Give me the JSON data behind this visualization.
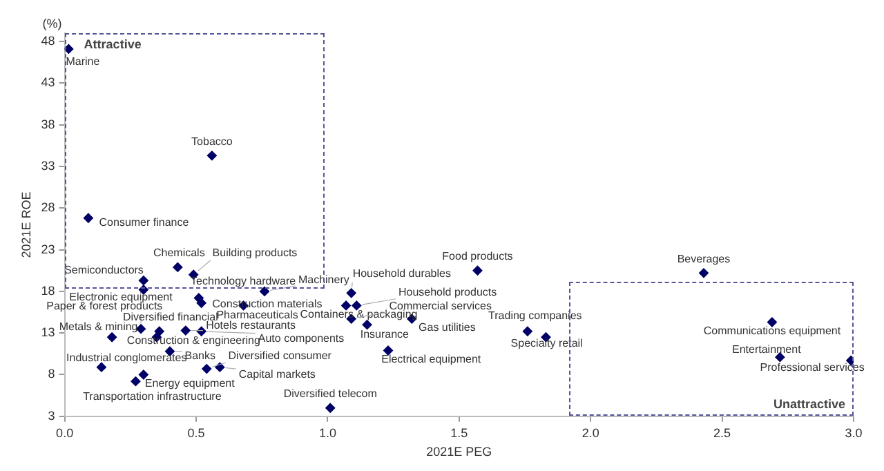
{
  "chart_data": {
    "type": "scatter",
    "xlabel": "2021E PEG",
    "ylabel": "2021E ROE",
    "xlim": [
      0,
      3
    ],
    "ylim": [
      3,
      49
    ],
    "xticks": [
      {
        "value": 0,
        "label": "0.0"
      },
      {
        "value": 0.5,
        "label": "0.5"
      },
      {
        "value": 1,
        "label": "1.0"
      },
      {
        "value": 1.5,
        "label": "1.5"
      },
      {
        "value": 2,
        "label": "2.0"
      },
      {
        "value": 2.5,
        "label": "2.5"
      },
      {
        "value": 3,
        "label": "3.0"
      }
    ],
    "yticks": [
      3,
      8,
      13,
      18,
      23,
      28,
      33,
      38,
      43,
      48
    ],
    "grid": false,
    "legend": false,
    "marker": "diamond",
    "series": [
      {
        "color": "#000066",
        "x": [
          0.015,
          0.56,
          0.09,
          0.43,
          0.49,
          0.3,
          0.3,
          0.51,
          0.52,
          0.68,
          0.76,
          1.09,
          1.07,
          1.11,
          1.09,
          1.15,
          1.32,
          1.23,
          0.29,
          0.36,
          0.18,
          0.35,
          0.46,
          0.52,
          0.4,
          0.14,
          0.54,
          0.59,
          0.3,
          0.27,
          1.01,
          1.57,
          2.43,
          1.76,
          1.83,
          2.69,
          2.72,
          2.99
        ],
        "values": [
          47.1,
          34.3,
          26.8,
          20.9,
          20.0,
          19.3,
          18.2,
          17.2,
          16.6,
          16.3,
          18.0,
          17.8,
          16.3,
          16.3,
          14.7,
          14.0,
          14.7,
          10.9,
          13.5,
          13.2,
          12.5,
          12.5,
          13.3,
          13.2,
          10.8,
          8.9,
          8.7,
          8.9,
          8.0,
          7.2,
          4.0,
          20.5,
          20.2,
          13.2,
          12.5,
          14.3,
          10.1,
          9.7
        ]
      }
    ],
    "annotations": [
      "(%)",
      "Attractive",
      "Unattractive",
      {
        "text": "Marine",
        "x": 0.015,
        "y": 47.1
      },
      {
        "text": "Tobacco",
        "x": 0.56,
        "y": 34.3
      },
      {
        "text": "Consumer finance",
        "x": 0.09,
        "y": 26.8
      },
      {
        "text": "Chemicals",
        "x": 0.43,
        "y": 20.9
      },
      {
        "text": "Building products",
        "x": 0.49,
        "y": 20.0
      },
      {
        "text": "Semiconductors",
        "x": 0.3,
        "y": 19.3
      },
      {
        "text": "Electronic equipment",
        "x": 0.3,
        "y": 18.2
      },
      {
        "text": "Technology hardware",
        "x": 0.51,
        "y": 17.2
      },
      {
        "text": "Construction materials",
        "x": 0.52,
        "y": 16.6
      },
      {
        "text": "Pharmaceuticals",
        "x": 0.68,
        "y": 16.3
      },
      {
        "text": "Machinery",
        "x": 0.76,
        "y": 18.0
      },
      {
        "text": "Household durables",
        "x": 1.09,
        "y": 17.8
      },
      {
        "text": "Containers & packaging",
        "x": 1.07,
        "y": 16.3
      },
      {
        "text": "Household products",
        "x": 1.11,
        "y": 16.3
      },
      {
        "text": "Commercial services",
        "x": 1.09,
        "y": 14.7
      },
      {
        "text": "Insurance",
        "x": 1.15,
        "y": 14.0
      },
      {
        "text": "Gas utilities",
        "x": 1.32,
        "y": 14.7
      },
      {
        "text": "Electrical equipment",
        "x": 1.23,
        "y": 10.9
      },
      {
        "text": "Paper & forest products",
        "x": 0.29,
        "y": 13.5
      },
      {
        "text": "Diversified financial",
        "x": 0.36,
        "y": 13.2
      },
      {
        "text": "Metals & mining",
        "x": 0.18,
        "y": 12.5
      },
      {
        "text": "Construction & engineering",
        "x": 0.35,
        "y": 12.5
      },
      {
        "text": "Hotels restaurants",
        "x": 0.46,
        "y": 13.3
      },
      {
        "text": "Auto components",
        "x": 0.52,
        "y": 13.2
      },
      {
        "text": "Banks",
        "x": 0.4,
        "y": 10.8
      },
      {
        "text": "Industrial conglomerates",
        "x": 0.14,
        "y": 8.9
      },
      {
        "text": "Diversified consumer",
        "x": 0.54,
        "y": 8.7
      },
      {
        "text": "Capital markets",
        "x": 0.59,
        "y": 8.9
      },
      {
        "text": "Energy equipment",
        "x": 0.3,
        "y": 8.0
      },
      {
        "text": "Transportation infrastructure",
        "x": 0.27,
        "y": 7.2
      },
      {
        "text": "Diversified telecom",
        "x": 1.01,
        "y": 4.0
      },
      {
        "text": "Food products",
        "x": 1.57,
        "y": 20.5
      },
      {
        "text": "Beverages",
        "x": 2.43,
        "y": 20.2
      },
      {
        "text": "Trading companies",
        "x": 1.76,
        "y": 13.2
      },
      {
        "text": "Specialty retail",
        "x": 1.83,
        "y": 12.5
      },
      {
        "text": "Communications equipment",
        "x": 2.69,
        "y": 14.3
      },
      {
        "text": "Entertainment",
        "x": 2.72,
        "y": 10.1
      },
      {
        "text": "Professional services",
        "x": 2.99,
        "y": 9.7
      }
    ]
  }
}
